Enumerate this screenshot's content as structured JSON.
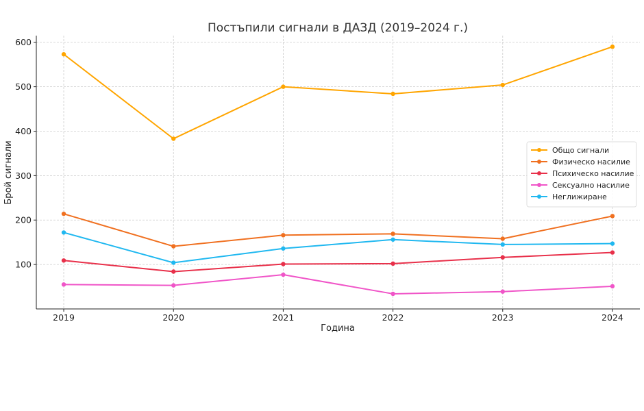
{
  "chart_data": {
    "type": "line",
    "title": "Постъпили сигнали в ДАЗД (2019–2024 г.)",
    "xlabel": "Година",
    "ylabel": "Брой сигнали",
    "x": [
      2019,
      2020,
      2021,
      2022,
      2023,
      2024
    ],
    "x_tick_labels": [
      "2019",
      "2020",
      "2021",
      "2022",
      "2023",
      "2024"
    ],
    "y_ticks": [
      100,
      200,
      300,
      400,
      500,
      600
    ],
    "y_tick_labels": [
      "100",
      "200",
      "300",
      "400",
      "500",
      "600"
    ],
    "xlim": [
      2018.75,
      2024.25
    ],
    "ylim": [
      0,
      615
    ],
    "grid": true,
    "legend_position": "center-right",
    "series": [
      {
        "name": "Общо сигнали",
        "color": "#FFA500",
        "values": [
          573,
          383,
          500,
          484,
          504,
          590
        ]
      },
      {
        "name": "Физическо насилие",
        "color": "#F07020",
        "values": [
          214,
          141,
          166,
          169,
          158,
          209
        ]
      },
      {
        "name": "Психическо насилие",
        "color": "#E8304A",
        "values": [
          109,
          84,
          101,
          102,
          116,
          127
        ]
      },
      {
        "name": "Сексуално насилие",
        "color": "#F055C8",
        "values": [
          55,
          53,
          77,
          34,
          39,
          51
        ]
      },
      {
        "name": "Неглижиране",
        "color": "#20B8F0",
        "values": [
          172,
          104,
          136,
          156,
          145,
          147
        ]
      }
    ]
  }
}
